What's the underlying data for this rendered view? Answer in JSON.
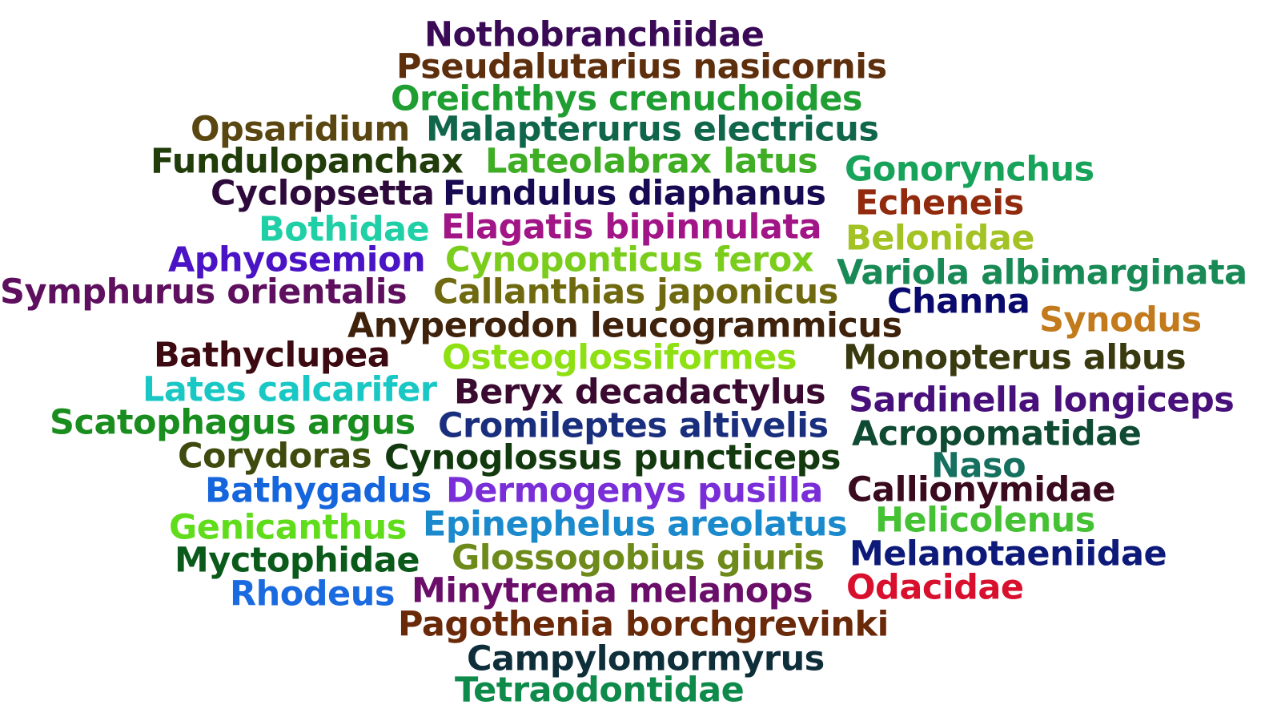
{
  "words": [
    {
      "text": "Nothobranchiidae",
      "color": "#3b0a57"
    },
    {
      "text": "Pseudalutarius nasicornis",
      "color": "#5e2f0d"
    },
    {
      "text": "Oreichthys crenuchoides",
      "color": "#1f9e32"
    },
    {
      "text": "Opsaridium",
      "color": "#5a4610"
    },
    {
      "text": "Malapterurus electricus",
      "color": "#10664a"
    },
    {
      "text": "Fundulopanchax",
      "color": "#203d0a"
    },
    {
      "text": "Lateolabrax latus",
      "color": "#3fae25"
    },
    {
      "text": "Gonorynchus",
      "color": "#17a35a"
    },
    {
      "text": "Cyclopsetta",
      "color": "#2e0a3c"
    },
    {
      "text": "Fundulus diaphanus",
      "color": "#180a52"
    },
    {
      "text": "Echeneis",
      "color": "#922a0e"
    },
    {
      "text": "Bothidae",
      "color": "#1fd0a6"
    },
    {
      "text": "Elagatis bipinnulata",
      "color": "#a21587"
    },
    {
      "text": "Belonidae",
      "color": "#a3c224"
    },
    {
      "text": "Aphyosemion",
      "color": "#4a14c6"
    },
    {
      "text": "Cynoponticus ferox",
      "color": "#7bcd1c"
    },
    {
      "text": "Variola albimarginata",
      "color": "#198a56"
    },
    {
      "text": "Symphurus orientalis",
      "color": "#5e0f5e"
    },
    {
      "text": "Callanthias japonicus",
      "color": "#6f6a10"
    },
    {
      "text": "Channa",
      "color": "#0a0a6e"
    },
    {
      "text": "Synodus",
      "color": "#c27a1c"
    },
    {
      "text": "Anyperodon leucogrammicus",
      "color": "#3f220c"
    },
    {
      "text": "Bathyclupea",
      "color": "#3c0a10"
    },
    {
      "text": "Osteoglossiformes",
      "color": "#8ee012"
    },
    {
      "text": "Monopterus albus",
      "color": "#3a3a10"
    },
    {
      "text": "Lates calcarifer",
      "color": "#19c8c4"
    },
    {
      "text": "Beryx decadactylus",
      "color": "#3a0a30"
    },
    {
      "text": "Sardinella longiceps",
      "color": "#48107a"
    },
    {
      "text": "Scatophagus argus",
      "color": "#1a8d1f"
    },
    {
      "text": "Cromileptes altivelis",
      "color": "#1a2e7e"
    },
    {
      "text": "Acropomatidae",
      "color": "#0f4a32"
    },
    {
      "text": "Corydoras",
      "color": "#3e4a0e"
    },
    {
      "text": "Cynoglossus puncticeps",
      "color": "#123a0e"
    },
    {
      "text": "Naso",
      "color": "#157060"
    },
    {
      "text": "Bathygadus",
      "color": "#1565dc"
    },
    {
      "text": "Dermogenys pusilla",
      "color": "#7a2ed8"
    },
    {
      "text": "Callionymidae",
      "color": "#3a0a1e"
    },
    {
      "text": "Genicanthus",
      "color": "#5fdc1a"
    },
    {
      "text": "Epinephelus areolatus",
      "color": "#1a8acc"
    },
    {
      "text": "Helicolenus",
      "color": "#45c233"
    },
    {
      "text": "Myctophidae",
      "color": "#0a5a1a"
    },
    {
      "text": "Glossogobius giuris",
      "color": "#6d8a1a"
    },
    {
      "text": "Melanotaeniidae",
      "color": "#0e1a7a"
    },
    {
      "text": "Rhodeus",
      "color": "#1a6ae0"
    },
    {
      "text": "Minytrema melanops",
      "color": "#6a0e6a"
    },
    {
      "text": "Odacidae",
      "color": "#d8102e"
    },
    {
      "text": "Pagothenia borchgrevinki",
      "color": "#6a2a0a"
    },
    {
      "text": "Campylomormyrus",
      "color": "#0e2e3a"
    },
    {
      "text": "Tetraodontidae",
      "color": "#0e8a4a"
    }
  ]
}
